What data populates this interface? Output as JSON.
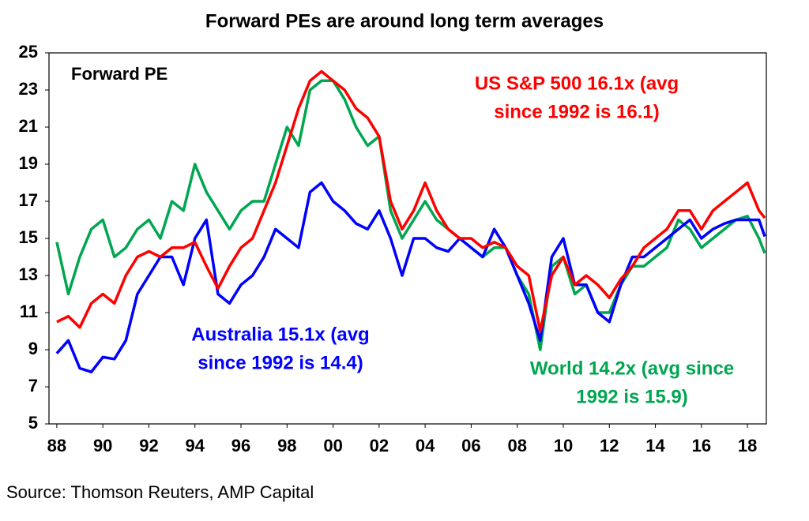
{
  "chart_data": {
    "type": "line",
    "title": "Forward PEs are around long term averages",
    "subtitle": "Forward PE",
    "source": "Source: Thomson Reuters, AMP Capital",
    "x": [
      1988,
      1988.5,
      1989,
      1989.5,
      1990,
      1990.5,
      1991,
      1991.5,
      1992,
      1992.5,
      1993,
      1993.5,
      1994,
      1994.5,
      1995,
      1995.5,
      1996,
      1996.5,
      1997,
      1997.5,
      1998,
      1998.5,
      1999,
      1999.5,
      2000,
      2000.5,
      2001,
      2001.5,
      2002,
      2002.5,
      2003,
      2003.5,
      2004,
      2004.5,
      2005,
      2005.5,
      2006,
      2006.5,
      2007,
      2007.5,
      2008,
      2008.5,
      2009,
      2009.5,
      2010,
      2010.5,
      2011,
      2011.5,
      2012,
      2012.5,
      2013,
      2013.5,
      2014,
      2014.5,
      2015,
      2015.5,
      2016,
      2016.5,
      2017,
      2017.5,
      2018,
      2018.5,
      2018.75
    ],
    "series": [
      {
        "color": "#ff0000",
        "label": [
          "US S&P 500 16.1x (avg",
          "since 1992 is 16.1)"
        ],
        "values": [
          10.5,
          10.8,
          10.2,
          11.5,
          12,
          11.5,
          13,
          14,
          14.3,
          14,
          14.5,
          14.5,
          14.8,
          13.5,
          12.3,
          13.5,
          14.5,
          15,
          16.5,
          18,
          20,
          22,
          23.5,
          24,
          23.5,
          23,
          22,
          21.5,
          20.5,
          17,
          15.5,
          16.5,
          18,
          16.5,
          15.5,
          15,
          15,
          14.5,
          14.8,
          14.5,
          13.5,
          13,
          10,
          13,
          14,
          12.5,
          13,
          12.5,
          11.8,
          12.8,
          13.5,
          14.5,
          15,
          15.5,
          16.5,
          16.5,
          15.5,
          16.5,
          17,
          17.5,
          18,
          16.5,
          16.1
        ]
      },
      {
        "color": "#0000ff",
        "label": [
          "Australia 15.1x (avg",
          "since 1992 is 14.4)"
        ],
        "values": [
          8.8,
          9.5,
          8,
          7.8,
          8.6,
          8.5,
          9.5,
          12,
          13,
          14,
          14,
          12.5,
          15,
          16,
          12,
          11.5,
          12.5,
          13,
          14,
          15.5,
          15,
          14.5,
          17.5,
          18,
          17,
          16.5,
          15.8,
          15.5,
          16.5,
          15,
          13,
          15,
          15,
          14.5,
          14.3,
          15,
          14.5,
          14,
          15.5,
          14.5,
          13,
          11.5,
          9.5,
          14,
          15,
          12.5,
          12.5,
          11,
          10.5,
          12.5,
          14,
          14,
          14.5,
          15,
          15.5,
          16,
          15,
          15.5,
          15.8,
          16,
          16,
          16,
          15.1
        ]
      },
      {
        "color": "#00a650",
        "label": [
          "World 14.2x (avg since",
          "1992 is 15.9)"
        ],
        "values": [
          14.8,
          12,
          14,
          15.5,
          16,
          14,
          14.5,
          15.5,
          16,
          15,
          17,
          16.5,
          19,
          17.5,
          16.5,
          15.5,
          16.5,
          17,
          17,
          19,
          21,
          20,
          23,
          23.5,
          23.5,
          22.5,
          21,
          20,
          20.5,
          16.5,
          15,
          16,
          17,
          16,
          15.5,
          15,
          14.5,
          14,
          14.5,
          14.5,
          13,
          12,
          9,
          13.5,
          14,
          12,
          12.5,
          11,
          11,
          12.5,
          13.5,
          13.5,
          14,
          14.5,
          16,
          15.5,
          14.5,
          15,
          15.5,
          16,
          16.2,
          15,
          14.2
        ]
      }
    ],
    "xlim": [
      1987.66,
      2018.82
    ],
    "xticks": [
      {
        "value": 1988,
        "label": "88"
      },
      {
        "value": 1990,
        "label": "90"
      },
      {
        "value": 1992,
        "label": "92"
      },
      {
        "value": 1994,
        "label": "94"
      },
      {
        "value": 1996,
        "label": "96"
      },
      {
        "value": 1998,
        "label": "98"
      },
      {
        "value": 2000,
        "label": "00"
      },
      {
        "value": 2002,
        "label": "02"
      },
      {
        "value": 2004,
        "label": "04"
      },
      {
        "value": 2006,
        "label": "06"
      },
      {
        "value": 2008,
        "label": "08"
      },
      {
        "value": 2010,
        "label": "10"
      },
      {
        "value": 2012,
        "label": "12"
      },
      {
        "value": 2014,
        "label": "14"
      },
      {
        "value": 2016,
        "label": "16"
      },
      {
        "value": 2018,
        "label": "18"
      }
    ],
    "ylim": [
      5,
      25
    ],
    "yticks": [
      5,
      7,
      9,
      11,
      13,
      15,
      17,
      19,
      21,
      23,
      25
    ]
  }
}
